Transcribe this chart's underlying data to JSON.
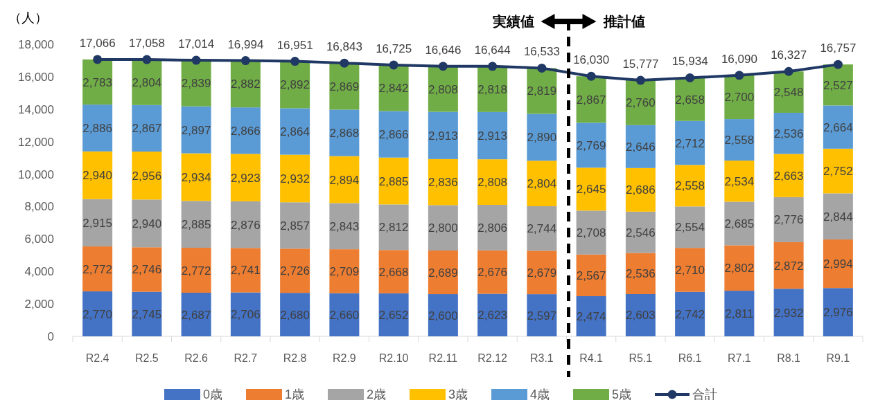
{
  "chart_data": {
    "type": "bar",
    "stacked": true,
    "ylabel": "（人）",
    "categories": [
      "R2.4",
      "R2.5",
      "R2.6",
      "R2.7",
      "R2.8",
      "R2.9",
      "R2.10",
      "R2.11",
      "R2.12",
      "R3.1",
      "R4.1",
      "R5.1",
      "R6.1",
      "R7.1",
      "R8.1",
      "R9.1"
    ],
    "series": [
      {
        "name": "0歳",
        "color": "#4472c4",
        "values": [
          2770,
          2745,
          2687,
          2706,
          2680,
          2660,
          2652,
          2600,
          2623,
          2597,
          2474,
          2603,
          2742,
          2811,
          2932,
          2976
        ],
        "value_labels": [
          "2,770",
          "2,745",
          "2,687",
          "2,706",
          "2,680",
          "2,660",
          "2,652",
          "2,600",
          "2,623",
          "2,597",
          "2,474",
          "2,603",
          "2,742",
          "2,811",
          "2,932",
          "2,976"
        ]
      },
      {
        "name": "1歳",
        "color": "#ed7d31",
        "values": [
          2772,
          2746,
          2772,
          2741,
          2726,
          2709,
          2668,
          2689,
          2676,
          2679,
          2567,
          2536,
          2710,
          2802,
          2872,
          2994
        ],
        "value_labels": [
          "2,772",
          "2,746",
          "2,772",
          "2,741",
          "2,726",
          "2,709",
          "2,668",
          "2,689",
          "2,676",
          "2,679",
          "2,567",
          "2,536",
          "2,710",
          "2,802",
          "2,872",
          "2,994"
        ]
      },
      {
        "name": "2歳",
        "color": "#a5a5a5",
        "values": [
          2915,
          2940,
          2885,
          2876,
          2857,
          2843,
          2812,
          2800,
          2806,
          2744,
          2708,
          2546,
          2554,
          2685,
          2776,
          2844
        ],
        "value_labels": [
          "2,915",
          "2,940",
          "2,885",
          "2,876",
          "2,857",
          "2,843",
          "2,812",
          "2,800",
          "2,806",
          "2,744",
          "2,708",
          "2,546",
          "2,554",
          "2,685",
          "2,776",
          "2,844"
        ]
      },
      {
        "name": "3歳",
        "color": "#ffc000",
        "values": [
          2940,
          2956,
          2934,
          2923,
          2932,
          2894,
          2885,
          2836,
          2808,
          2804,
          2645,
          2686,
          2558,
          2534,
          2663,
          2752
        ],
        "value_labels": [
          "2,940",
          "2,956",
          "2,934",
          "2,923",
          "2,932",
          "2,894",
          "2,885",
          "2,836",
          "2,808",
          "2,804",
          "2,645",
          "2,686",
          "2,558",
          "2,534",
          "2,663",
          "2,752"
        ]
      },
      {
        "name": "4歳",
        "color": "#5b9bd5",
        "values": [
          2886,
          2867,
          2897,
          2866,
          2864,
          2868,
          2866,
          2913,
          2913,
          2890,
          2769,
          2646,
          2712,
          2558,
          2536,
          2664
        ],
        "value_labels": [
          "2,886",
          "2,867",
          "2,897",
          "2,866",
          "2,864",
          "2,868",
          "2,866",
          "2,913",
          "2,913",
          "2,890",
          "2,769",
          "2,646",
          "2,712",
          "2,558",
          "2,536",
          "2,664"
        ]
      },
      {
        "name": "5歳",
        "color": "#70ad47",
        "values": [
          2783,
          2804,
          2839,
          2882,
          2892,
          2869,
          2842,
          2808,
          2818,
          2819,
          2867,
          2760,
          2658,
          2700,
          2548,
          2527
        ],
        "value_labels": [
          "2,783",
          "2,804",
          "2,839",
          "2,882",
          "2,892",
          "2,869",
          "2,842",
          "2,808",
          "2,818",
          "2,819",
          "2,867",
          "2,760",
          "2,658",
          "2,700",
          "2,548",
          "2,527"
        ]
      },
      {
        "name": "合計",
        "type": "line",
        "color": "#203864",
        "marker": "circle",
        "values": [
          17066,
          17058,
          17014,
          16994,
          16951,
          16843,
          16725,
          16646,
          16644,
          16533,
          16030,
          15777,
          15934,
          16090,
          16327,
          16757
        ],
        "value_labels": [
          "17,066",
          "17,058",
          "17,014",
          "16,994",
          "16,951",
          "16,843",
          "16,725",
          "16,646",
          "16,644",
          "16,533",
          "16,030",
          "15,777",
          "15,934",
          "16,090",
          "16,327",
          "16,757"
        ]
      }
    ],
    "ylim": [
      0,
      18000
    ],
    "yticks": [
      0,
      {
        "value": 2000,
        "label": "2,000"
      },
      {
        "value": 4000,
        "label": "4,000"
      },
      {
        "value": 6000,
        "label": "6,000"
      },
      {
        "value": 8000,
        "label": "8,000"
      },
      {
        "value": 10000,
        "label": "10,000"
      },
      {
        "value": 12000,
        "label": "12,000"
      },
      {
        "value": 14000,
        "label": "14,000"
      },
      {
        "value": 16000,
        "label": "16,000"
      },
      {
        "value": 18000,
        "label": "18,000"
      }
    ],
    "grid": false,
    "legend": "bottom",
    "annotations": [
      "実績値",
      "推計値"
    ]
  }
}
